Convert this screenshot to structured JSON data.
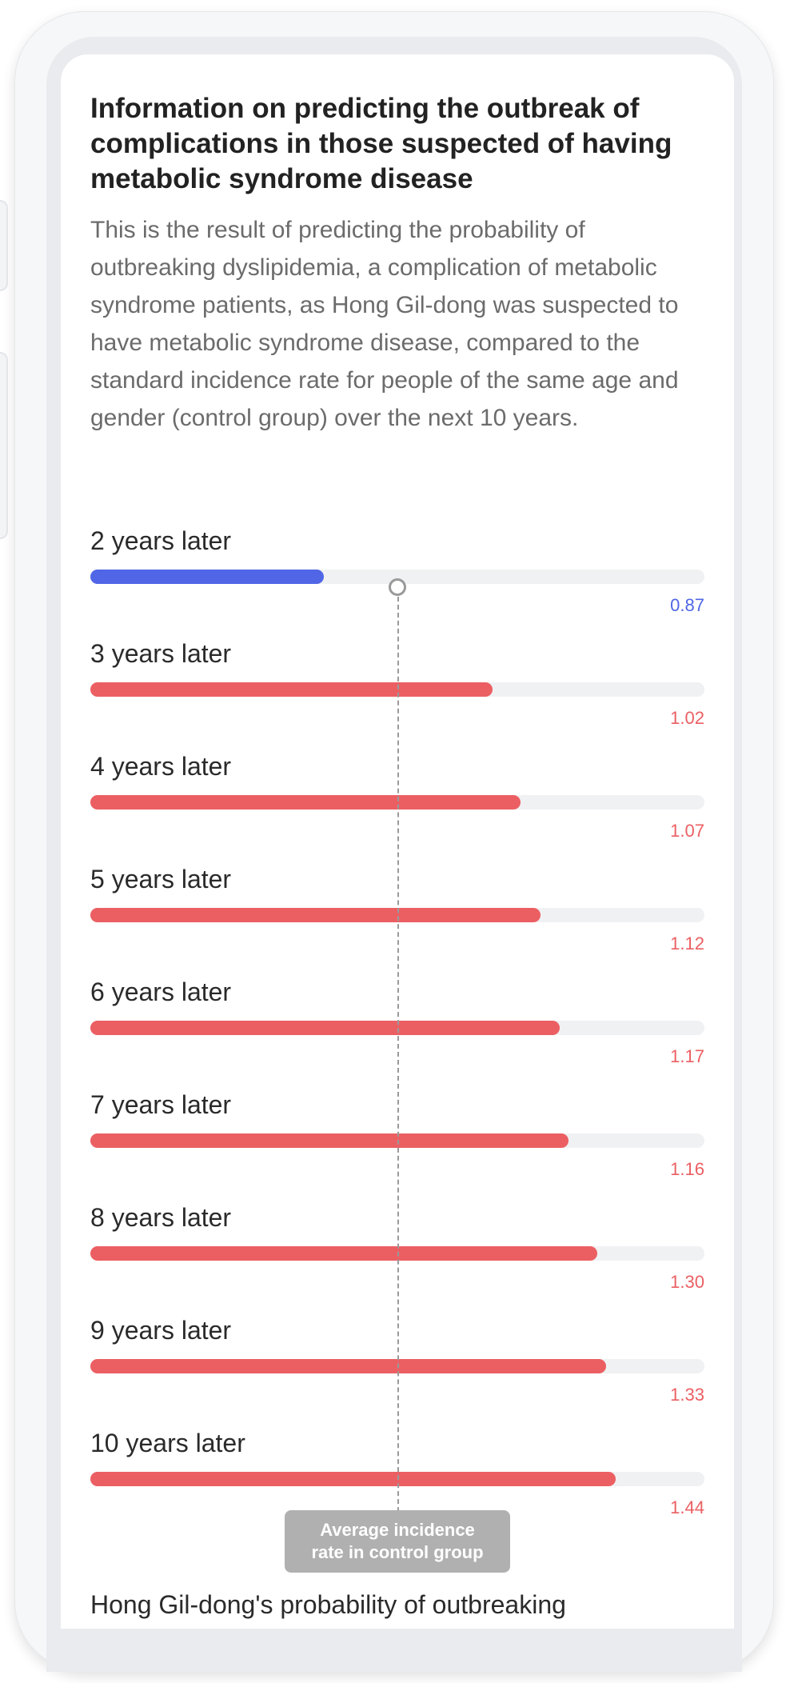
{
  "header": {
    "title": "Information on predicting the outbreak of complications in those suspected of having metabolic syndrome disease",
    "description": "This is the result of predicting the probability of outbreaking dyslipidemia, a complication of metabolic syndrome patients, as Hong Gil-dong was suspected to have metabolic syndrome disease, compared to the standard incidence rate for people of the same age and gender (control group) over the next 10 years."
  },
  "reference": {
    "label": "Average incidence rate in control group",
    "value": 1.0,
    "fraction": 0.5
  },
  "footer": {
    "text": "Hong Gil-dong's probability of outbreaking"
  },
  "colors": {
    "below_reference": "#5066e6",
    "above_reference": "#eb5f63",
    "track": "#f0f1f3"
  },
  "rows": [
    {
      "label": "2 years later",
      "value": "0.87",
      "fill_fraction": 0.38
    },
    {
      "label": "3 years later",
      "value": "1.02",
      "fill_fraction": 0.655
    },
    {
      "label": "4 years later",
      "value": "1.07",
      "fill_fraction": 0.7
    },
    {
      "label": "5 years later",
      "value": "1.12",
      "fill_fraction": 0.733
    },
    {
      "label": "6 years later",
      "value": "1.17",
      "fill_fraction": 0.764
    },
    {
      "label": "7 years later",
      "value": "1.16",
      "fill_fraction": 0.778
    },
    {
      "label": "8 years later",
      "value": "1.30",
      "fill_fraction": 0.826
    },
    {
      "label": "9 years later",
      "value": "1.33",
      "fill_fraction": 0.84
    },
    {
      "label": "10 years later",
      "value": "1.44",
      "fill_fraction": 0.855
    }
  ]
}
